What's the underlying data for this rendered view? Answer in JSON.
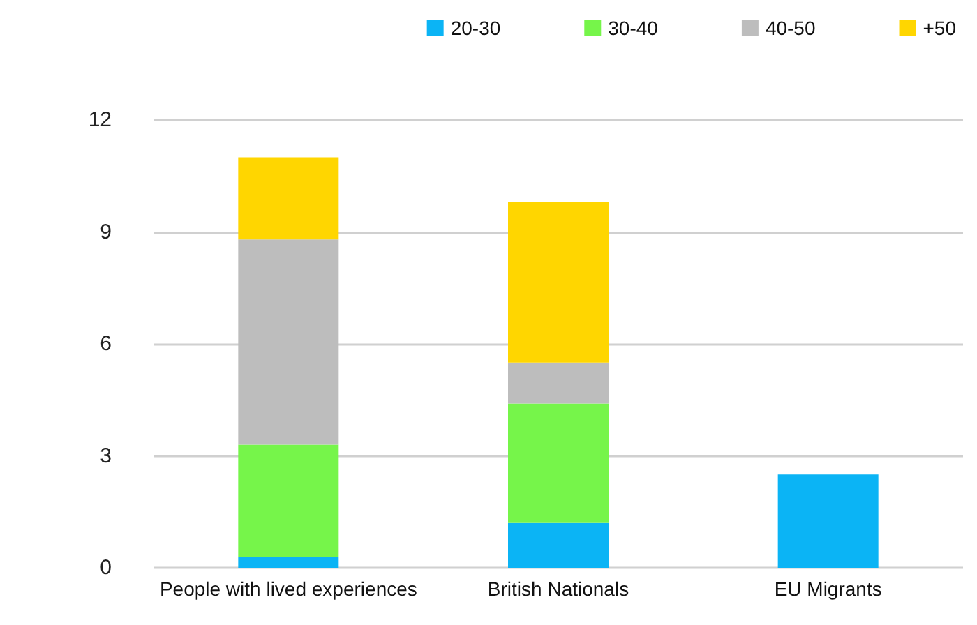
{
  "chart_data": {
    "type": "bar",
    "stacked": true,
    "categories": [
      "People with lived experiences",
      "British Nationals",
      "EU Migrants"
    ],
    "series": [
      {
        "name": "20-30",
        "color": "#0bb4f5",
        "values": [
          0.3,
          1.2,
          2.5
        ]
      },
      {
        "name": "30-40",
        "color": "#76f54a",
        "values": [
          3.0,
          3.2,
          0
        ]
      },
      {
        "name": "40-50",
        "color": "#bdbdbd",
        "values": [
          5.5,
          1.1,
          0
        ]
      },
      {
        "name": "+50",
        "color": "#ffd600",
        "values": [
          2.2,
          4.3,
          0
        ]
      }
    ],
    "ylim": [
      0,
      12
    ],
    "yticks": [
      0,
      3,
      6,
      9,
      12
    ],
    "grid": "y",
    "legend": "top right"
  }
}
